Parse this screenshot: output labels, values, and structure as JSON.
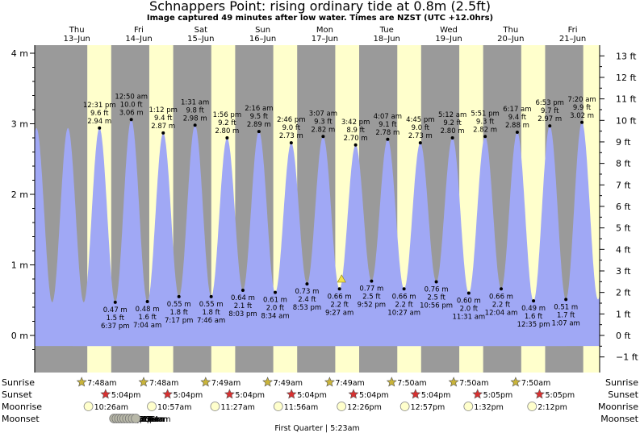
{
  "header": {
    "title": "Schnappers Point: rising  ordinary tide at 0.8m (2.5ft)",
    "subtitle": "Image captured 49 minutes after low water. Times are NZST (UTC +12.0hrs)"
  },
  "days": [
    {
      "dow": "Thu",
      "date": "13–Jun"
    },
    {
      "dow": "Fri",
      "date": "14–Jun"
    },
    {
      "dow": "Sat",
      "date": "15–Jun"
    },
    {
      "dow": "Sun",
      "date": "16–Jun"
    },
    {
      "dow": "Mon",
      "date": "17–Jun"
    },
    {
      "dow": "Tue",
      "date": "18–Jun"
    },
    {
      "dow": "Wed",
      "date": "19–Jun"
    },
    {
      "dow": "Thu",
      "date": "20–Jun"
    },
    {
      "dow": "Fri",
      "date": "21–Jun"
    }
  ],
  "chart_data": {
    "type": "area",
    "y_left_unit": "m",
    "y_right_unit": "ft",
    "ylim_m": [
      -0.3,
      4.0
    ],
    "ylim_ft": [
      -1,
      13
    ],
    "y_left_ticks": [
      "0 m",
      "1 m",
      "2 m",
      "3 m",
      "4 m"
    ],
    "y_right_ticks": [
      "−1 ft",
      "0 ft",
      "1 ft",
      "2 ft",
      "3 ft",
      "4 ft",
      "5 ft",
      "6 ft",
      "7 ft",
      "8 ft",
      "9 ft",
      "10 ft",
      "11 ft",
      "12 ft",
      "13 ft"
    ],
    "tides": [
      {
        "type": "high",
        "time": "12:31 pm",
        "ft": "9.6 ft",
        "m": "2.94 m",
        "value": 2.94
      },
      {
        "type": "low",
        "time": "6:37 pm",
        "ft": "1.5 ft",
        "m": "0.47 m",
        "value": 0.47
      },
      {
        "type": "high",
        "time": "12:50 am",
        "ft": "10.0 ft",
        "m": "3.06 m",
        "value": 3.06
      },
      {
        "type": "low",
        "time": "7:04 am",
        "ft": "1.6 ft",
        "m": "0.48 m",
        "value": 0.48
      },
      {
        "type": "high",
        "time": "1:12 pm",
        "ft": "9.4 ft",
        "m": "2.87 m",
        "value": 2.87
      },
      {
        "type": "low",
        "time": "7:17 pm",
        "ft": "1.8 ft",
        "m": "0.55 m",
        "value": 0.55
      },
      {
        "type": "high",
        "time": "1:31 am",
        "ft": "9.8 ft",
        "m": "2.98 m",
        "value": 2.98
      },
      {
        "type": "low",
        "time": "7:46 am",
        "ft": "1.8 ft",
        "m": "0.55 m",
        "value": 0.55
      },
      {
        "type": "high",
        "time": "1:56 pm",
        "ft": "9.2 ft",
        "m": "2.80 m",
        "value": 2.8
      },
      {
        "type": "low",
        "time": "8:03 pm",
        "ft": "2.1 ft",
        "m": "0.64 m",
        "value": 0.64
      },
      {
        "type": "high",
        "time": "2:16 am",
        "ft": "9.5 ft",
        "m": "2.89 m",
        "value": 2.89
      },
      {
        "type": "low",
        "time": "8:34 am",
        "ft": "2.0 ft",
        "m": "0.61 m",
        "value": 0.61
      },
      {
        "type": "high",
        "time": "2:46 pm",
        "ft": "9.0 ft",
        "m": "2.73 m",
        "value": 2.73
      },
      {
        "type": "low",
        "time": "8:53 pm",
        "ft": "2.4 ft",
        "m": "0.73 m",
        "value": 0.73
      },
      {
        "type": "high",
        "time": "3:07 am",
        "ft": "9.3 ft",
        "m": "2.82 m",
        "value": 2.82
      },
      {
        "type": "low",
        "time": "9:27 am",
        "ft": "2.2 ft",
        "m": "0.66 m",
        "value": 0.66
      },
      {
        "type": "high",
        "time": "3:42 pm",
        "ft": "8.9 ft",
        "m": "2.70 m",
        "value": 2.7
      },
      {
        "type": "low",
        "time": "9:52 pm",
        "ft": "2.5 ft",
        "m": "0.77 m",
        "value": 0.77
      },
      {
        "type": "high",
        "time": "4:07 am",
        "ft": "9.1 ft",
        "m": "2.78 m",
        "value": 2.78
      },
      {
        "type": "low",
        "time": "10:27 am",
        "ft": "2.2 ft",
        "m": "0.66 m",
        "value": 0.66
      },
      {
        "type": "high",
        "time": "4:45 pm",
        "ft": "9.0 ft",
        "m": "2.73 m",
        "value": 2.73
      },
      {
        "type": "low",
        "time": "10:56 pm",
        "ft": "2.5 ft",
        "m": "0.76 m",
        "value": 0.76
      },
      {
        "type": "high",
        "time": "5:12 am",
        "ft": "9.2 ft",
        "m": "2.80 m",
        "value": 2.8
      },
      {
        "type": "low",
        "time": "11:31 am",
        "ft": "2.0 ft",
        "m": "0.60 m",
        "value": 0.6
      },
      {
        "type": "high",
        "time": "5:51 pm",
        "ft": "9.3 ft",
        "m": "2.82 m",
        "value": 2.82
      },
      {
        "type": "low",
        "time": "12:04 am",
        "ft": "2.2 ft",
        "m": "0.66 m",
        "value": 0.66
      },
      {
        "type": "high",
        "time": "6:17 am",
        "ft": "9.4 ft",
        "m": "2.88 m",
        "value": 2.88
      },
      {
        "type": "low",
        "time": "12:35 pm",
        "ft": "1.6 ft",
        "m": "0.49 m",
        "value": 0.49
      },
      {
        "type": "high",
        "time": "6:53 pm",
        "ft": "9.7 ft",
        "m": "2.97 m",
        "value": 2.97
      },
      {
        "type": "low",
        "time": "1:07 am",
        "ft": "1.7 ft",
        "m": "0.51 m",
        "value": 0.51
      },
      {
        "type": "high",
        "time": "7:20 am",
        "ft": "9.9 ft",
        "m": "3.02 m",
        "value": 3.02
      }
    ],
    "current_level_m": 0.8,
    "grid": false,
    "colors": {
      "tide_fill": "#a0a8f5",
      "night_band": "#9a9a9a",
      "day_band": "#ffffcc",
      "current_marker": "#f3e24c"
    }
  },
  "almanac": {
    "row_labels": {
      "sunrise": "Sunrise",
      "sunset": "Sunset",
      "moonrise": "Moonrise",
      "moonset": "Moonset"
    },
    "sunrise": [
      "7:48am",
      "7:48am",
      "7:49am",
      "7:49am",
      "7:49am",
      "7:50am",
      "7:50am",
      "7:50am"
    ],
    "sunset": [
      "5:04pm",
      "5:04pm",
      "5:04pm",
      "5:04pm",
      "5:04pm",
      "5:04pm",
      "5:05pm",
      "5:05pm"
    ],
    "moonrise": [
      "10:26am",
      "10:57am",
      "11:27am",
      "11:56am",
      "12:26pm",
      "12:57pm",
      "1:32pm",
      "2:12pm"
    ],
    "moonset": [
      "8:20pm",
      "9:18pm",
      "10:16pm",
      "11:16pm",
      "12:17am",
      "1:20am",
      "2:26am",
      "3:35am",
      "4:44am"
    ],
    "moon_phase": "First Quarter | 5:23am",
    "icons": {
      "sunrise": "sunrise-star-icon",
      "sunset": "sunset-star-icon",
      "moonrise": "moon-rise-icon",
      "moonset": "moon-set-icon"
    }
  }
}
